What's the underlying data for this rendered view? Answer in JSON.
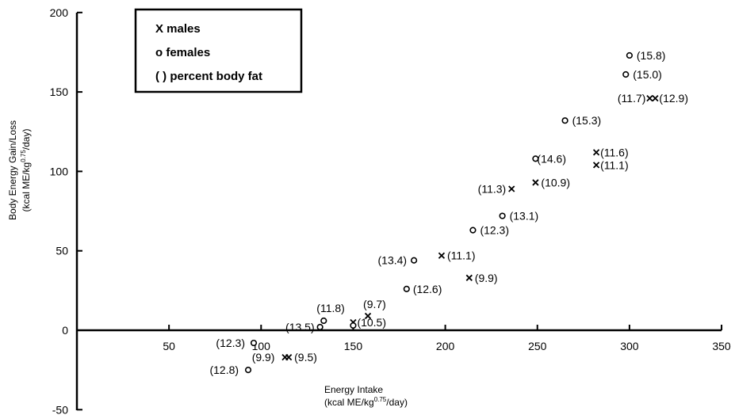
{
  "chart_data": {
    "type": "scatter",
    "xlabel_line1": "Energy Intake",
    "xlabel_line2_pre": "(kcal ME/kg",
    "xlabel_line2_sup": "0.75",
    "xlabel_line2_post": "/day)",
    "ylabel_line1": "Body Energy Gain/Loss",
    "ylabel_line2_pre": "(kcal ME/kg",
    "ylabel_line2_sup": "0.75",
    "ylabel_line2_post": "/day)",
    "xlim": [
      0,
      350
    ],
    "ylim": [
      -50,
      200
    ],
    "xticks": [
      50,
      100,
      150,
      200,
      250,
      300,
      350
    ],
    "yticks": [
      -50,
      0,
      50,
      100,
      150,
      200
    ],
    "legend": {
      "placement": "top-left",
      "entries": [
        "X males",
        "o females",
        "( ) percent body fat"
      ]
    },
    "grid": false,
    "series": [
      {
        "name": "males",
        "marker": "x",
        "points": [
          {
            "x": 113,
            "y": -17,
            "label": "(9.9)"
          },
          {
            "x": 115,
            "y": -17,
            "label": "(9.5)"
          },
          {
            "x": 150,
            "y": 5,
            "label": ""
          },
          {
            "x": 158,
            "y": 9,
            "label": "(9.7)"
          },
          {
            "x": 198,
            "y": 47,
            "label": "(11.1)"
          },
          {
            "x": 213,
            "y": 33,
            "label": "(9.9)"
          },
          {
            "x": 236,
            "y": 89,
            "label": "(11.3)"
          },
          {
            "x": 249,
            "y": 93,
            "label": "(10.9)"
          },
          {
            "x": 282,
            "y": 112,
            "label": "(11.6)"
          },
          {
            "x": 282,
            "y": 104,
            "label": "(11.1)"
          },
          {
            "x": 311,
            "y": 146,
            "label": "(11.7)"
          },
          {
            "x": 314,
            "y": 146,
            "label": "(12.9)"
          }
        ]
      },
      {
        "name": "females",
        "marker": "o",
        "points": [
          {
            "x": 93,
            "y": -25,
            "label": "(12.8)"
          },
          {
            "x": 96,
            "y": -8,
            "label": "(12.3)"
          },
          {
            "x": 132,
            "y": 2,
            "label": "(13.5)"
          },
          {
            "x": 134,
            "y": 6,
            "label": "(11.8)"
          },
          {
            "x": 150,
            "y": 3,
            "label": "(10.5)"
          },
          {
            "x": 179,
            "y": 26,
            "label": "(12.6)"
          },
          {
            "x": 183,
            "y": 44,
            "label": "(13.4)"
          },
          {
            "x": 215,
            "y": 63,
            "label": "(12.3)"
          },
          {
            "x": 231,
            "y": 72,
            "label": "(13.1)"
          },
          {
            "x": 249,
            "y": 108,
            "label": "(14.6)"
          },
          {
            "x": 265,
            "y": 132,
            "label": "(15.3)"
          },
          {
            "x": 298,
            "y": 161,
            "label": "(15.0)"
          },
          {
            "x": 300,
            "y": 173,
            "label": "(15.8)"
          }
        ]
      }
    ]
  }
}
